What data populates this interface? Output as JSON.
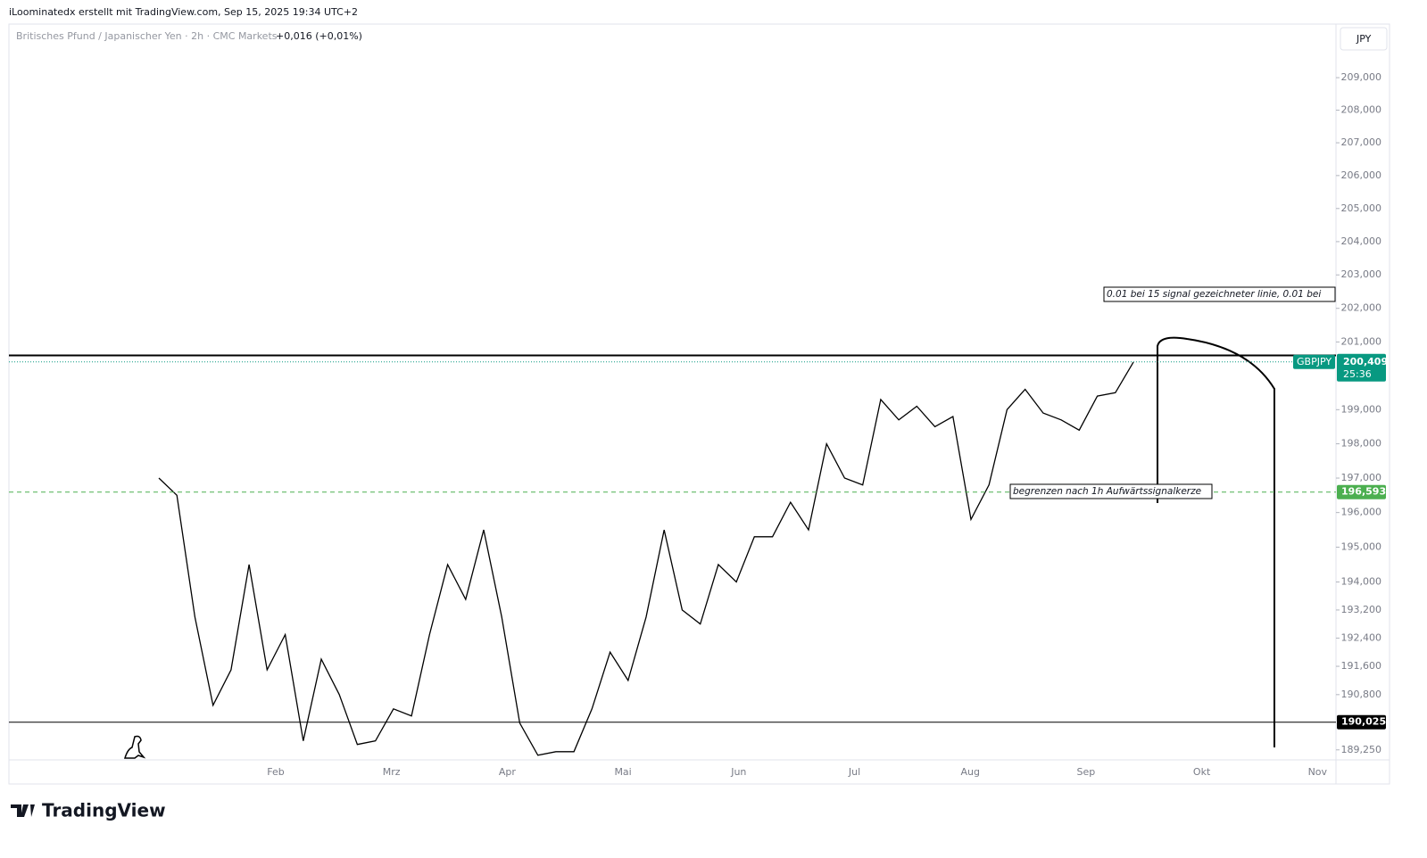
{
  "header": {
    "credit": "iLoominatedx erstellt mit TradingView.com, Sep 15, 2025 19:34 UTC+2",
    "brand": "TradingView"
  },
  "chart_data": {
    "type": "line",
    "title": "Britisches Pfund / Japanischer Yen · 2h · CMC Markets",
    "subtitle": "+0,016 (+0,01%)",
    "currency": "JPY",
    "log_scale": true,
    "ylim": [
      188.97,
      210.66
    ],
    "yticks": [
      {
        "value": 209,
        "label": "209,000"
      },
      {
        "value": 208,
        "label": "208,000"
      },
      {
        "value": 207,
        "label": "207,000"
      },
      {
        "value": 206,
        "label": "206,000"
      },
      {
        "value": 205,
        "label": "205,000"
      },
      {
        "value": 204,
        "label": "204,000"
      },
      {
        "value": 203,
        "label": "203,000"
      },
      {
        "value": 202,
        "label": "202,000"
      },
      {
        "value": 201,
        "label": "201,000"
      },
      {
        "value": 199,
        "label": "199,000"
      },
      {
        "value": 198,
        "label": "198,000"
      },
      {
        "value": 197,
        "label": "197,000"
      },
      {
        "value": 196,
        "label": "196,000"
      },
      {
        "value": 195,
        "label": "195,000"
      },
      {
        "value": 194,
        "label": "194,000"
      },
      {
        "value": 193.2,
        "label": "193,200"
      },
      {
        "value": 192.4,
        "label": "192,400"
      },
      {
        "value": 191.6,
        "label": "191,600"
      },
      {
        "value": 190.8,
        "label": "190,800"
      },
      {
        "value": 189.25,
        "label": "189,250"
      }
    ],
    "xticks": [
      "Feb",
      "Mrz",
      "Apr",
      "Mai",
      "Jun",
      "Jul",
      "Aug",
      "Sep",
      "Okt",
      "Nov"
    ],
    "series": [
      {
        "color": "#000000",
        "values": [
          197.0,
          196.5,
          193.0,
          190.5,
          191.5,
          194.5,
          191.5,
          192.5,
          189.5,
          191.8,
          190.8,
          189.4,
          189.5,
          190.4,
          190.2,
          192.5,
          194.5,
          193.5,
          195.5,
          193.0,
          190.0,
          189.1,
          189.2,
          189.2,
          190.4,
          192.0,
          191.2,
          193.0,
          195.5,
          193.2,
          192.8,
          194.5,
          194.0,
          195.3,
          195.3,
          196.3,
          195.5,
          198.0,
          197.0,
          196.8,
          199.3,
          198.7,
          199.1,
          198.5,
          198.8,
          195.8,
          196.8,
          199.0,
          199.6,
          198.9,
          198.7,
          198.4,
          199.4,
          199.5,
          200.4
        ]
      }
    ],
    "levels": [
      {
        "value": 200.6,
        "color": "#000000"
      },
      {
        "value": 196.593,
        "label": "196,593",
        "color": "#4caf50"
      },
      {
        "value": 190.025,
        "label": "190,025",
        "color": "#000000"
      }
    ],
    "last": {
      "value": 200.409,
      "label": "200,409",
      "symbol": "GBPJPY",
      "countdown": "25:36",
      "color": "#089981"
    },
    "annotations": [
      "0.01 bei 15 signal gezeichneter linie, 0.01 bei",
      "begrenzen nach 1h Aufwärtssignalkerze"
    ]
  }
}
